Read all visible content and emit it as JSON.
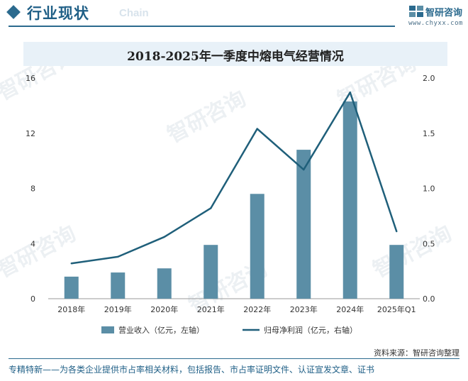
{
  "header": {
    "title": "行业现状",
    "ghost_text": "Chain",
    "logo_name": "智研咨询",
    "logo_url": "www.chyxx.com"
  },
  "chart_data": {
    "type": "bar+line",
    "title": "2018-2025年一季度中熔电气经营情况",
    "categories": [
      "2018年",
      "2019年",
      "2020年",
      "2021年",
      "2022年",
      "2023年",
      "2024年",
      "2025年Q1"
    ],
    "series": [
      {
        "name": "营业收入（亿元，左轴）",
        "type": "bar",
        "axis": "left",
        "color": "#5b8ea6",
        "values": [
          1.6,
          1.9,
          2.2,
          3.9,
          7.6,
          10.8,
          14.3,
          3.9
        ]
      },
      {
        "name": "归母净利润（亿元，右轴）",
        "type": "line",
        "axis": "right",
        "color": "#1f5f7a",
        "values": [
          0.32,
          0.38,
          0.56,
          0.82,
          1.54,
          1.17,
          1.87,
          0.61
        ]
      }
    ],
    "y_left": {
      "min": 0,
      "max": 16,
      "ticks": [
        "0",
        "4",
        "8",
        "12",
        "16"
      ]
    },
    "y_right": {
      "min": 0,
      "max": 2.0,
      "ticks": [
        "0.0",
        "0.5",
        "1.0",
        "1.5",
        "2.0"
      ]
    },
    "legend_position": "bottom",
    "grid": false
  },
  "footer": {
    "source": "资料来源：智研咨询整理",
    "note": "专精特新——为各类企业提供市占率相关材料，包括报告、市占率证明文件、认证宣发文章、证书"
  },
  "watermark": "智研咨询"
}
